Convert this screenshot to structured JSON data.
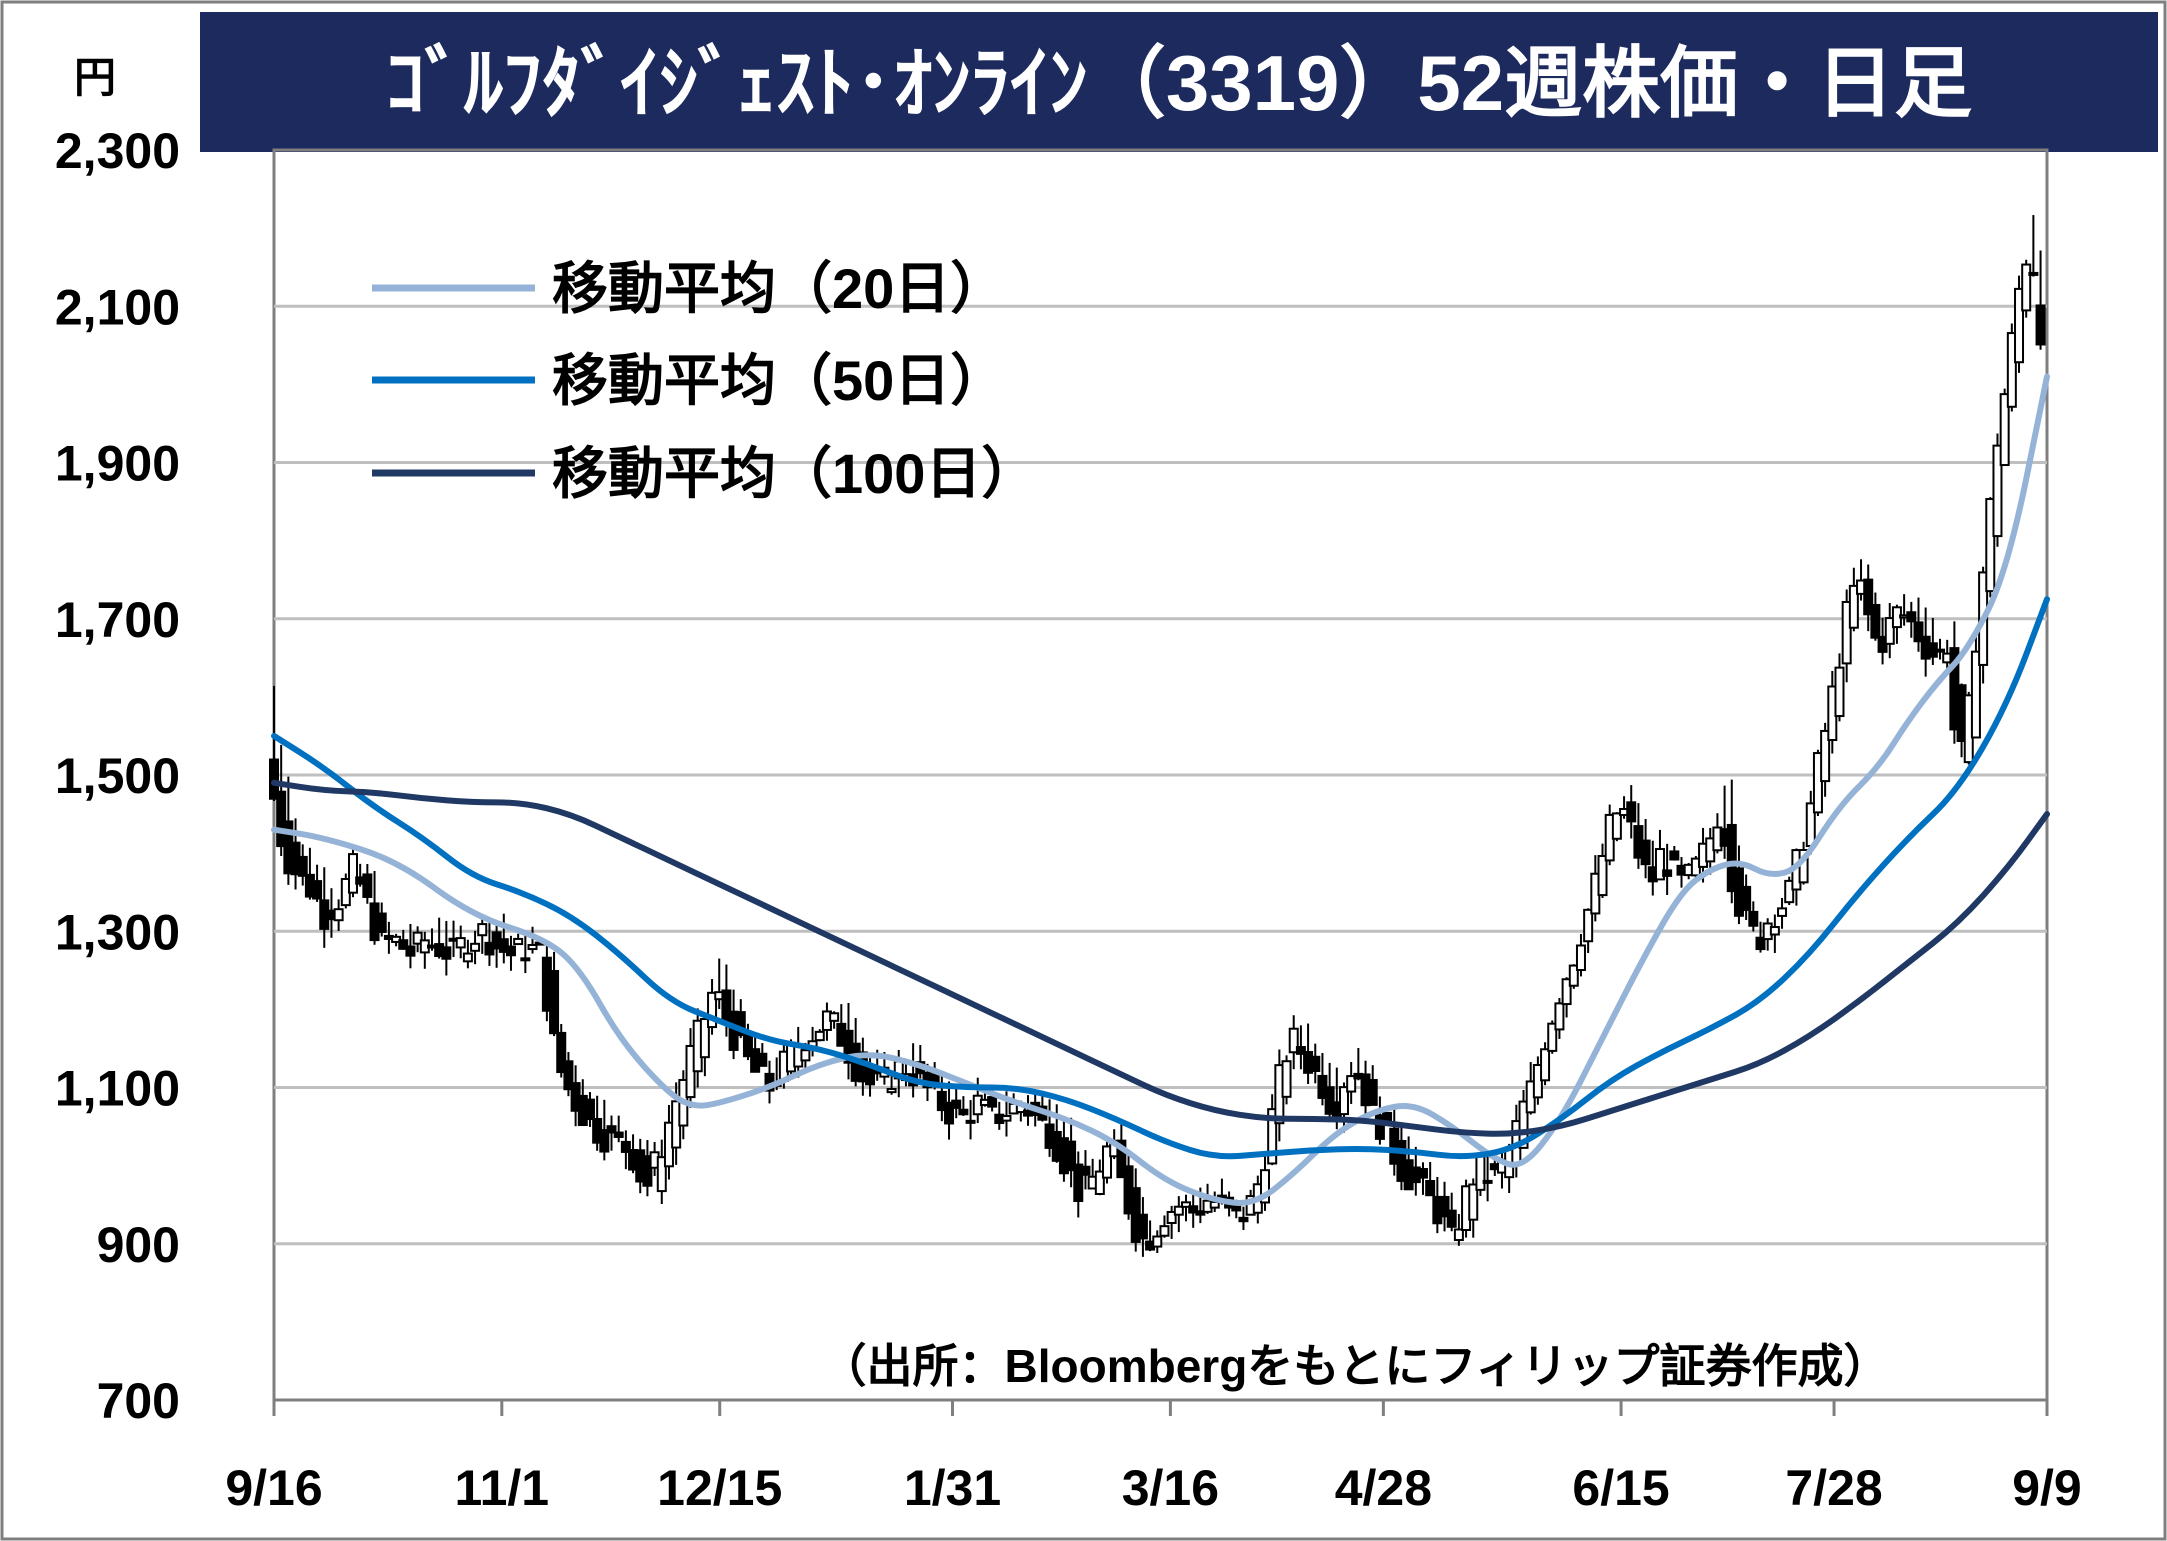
{
  "chart_data": {
    "type": "candlestick",
    "title": "ｺﾞﾙﾌﾀﾞｲｼﾞｪｽﾄ･ｵﾝﾗｲﾝ（3319）52週株価・日足",
    "unit": "円",
    "source": "（出所：Bloombergをもとにフィリップ証券作成）",
    "ylim": [
      700,
      2300
    ],
    "yticks": [
      {
        "value": 700,
        "label": "700"
      },
      {
        "value": 900,
        "label": "900"
      },
      {
        "value": 1100,
        "label": "1,100"
      },
      {
        "value": 1300,
        "label": "1,300"
      },
      {
        "value": 1500,
        "label": "1,500"
      },
      {
        "value": 1700,
        "label": "1,700"
      },
      {
        "value": 1900,
        "label": "1,900"
      },
      {
        "value": 2100,
        "label": "2,100"
      },
      {
        "value": 2300,
        "label": "2,300"
      }
    ],
    "grid": true,
    "legend_position": "top-left",
    "xticks": [
      {
        "day": 0,
        "label": "9/16"
      },
      {
        "day": 46,
        "label": "11/1"
      },
      {
        "day": 90,
        "label": "12/15"
      },
      {
        "day": 137,
        "label": "1/31"
      },
      {
        "day": 181,
        "label": "3/16"
      },
      {
        "day": 224,
        "label": "4/28"
      },
      {
        "day": 272,
        "label": "6/15"
      },
      {
        "day": 315,
        "label": "7/28"
      },
      {
        "day": 358,
        "label": "9/9"
      }
    ],
    "x_range": [
      0,
      358
    ],
    "candle_anchors": [
      [
        0,
        1470,
        1520,
        1600
      ],
      [
        2,
        1400,
        1470,
        1500
      ],
      [
        5,
        1370,
        1400,
        1420
      ],
      [
        8,
        1350,
        1370,
        1380
      ],
      [
        10,
        1320,
        1350,
        1360
      ],
      [
        13,
        1340,
        1320,
        1330
      ],
      [
        16,
        1380,
        1340,
        1350
      ],
      [
        18,
        1350,
        1380,
        1390
      ],
      [
        20,
        1310,
        1350,
        1360
      ],
      [
        22,
        1280,
        1310,
        1320
      ],
      [
        24,
        1290,
        1280,
        1290
      ],
      [
        26,
        1280,
        1290,
        1300
      ],
      [
        28,
        1270,
        1280,
        1290
      ],
      [
        30,
        1290,
        1270,
        1280
      ],
      [
        33,
        1280,
        1290,
        1300
      ],
      [
        36,
        1270,
        1280,
        1290
      ],
      [
        39,
        1290,
        1270,
        1280
      ],
      [
        42,
        1300,
        1290,
        1300
      ],
      [
        45,
        1280,
        1300,
        1310
      ],
      [
        48,
        1270,
        1280,
        1290
      ],
      [
        51,
        1280,
        1270,
        1280
      ],
      [
        54,
        1270,
        1280,
        1290
      ],
      [
        56,
        1170,
        1270,
        1280
      ],
      [
        58,
        1120,
        1170,
        1180
      ],
      [
        60,
        1090,
        1120,
        1130
      ],
      [
        63,
        1060,
        1090,
        1100
      ],
      [
        66,
        1040,
        1060,
        1070
      ],
      [
        69,
        1030,
        1040,
        1050
      ],
      [
        72,
        1020,
        1030,
        1040
      ],
      [
        75,
        970,
        1020,
        1030
      ],
      [
        78,
        1020,
        970,
        980
      ],
      [
        81,
        1080,
        1020,
        1030
      ],
      [
        84,
        1140,
        1080,
        1090
      ],
      [
        87,
        1190,
        1140,
        1150
      ],
      [
        89,
        1230,
        1190,
        1250
      ],
      [
        91,
        1190,
        1230,
        1240
      ],
      [
        94,
        1150,
        1190,
        1200
      ],
      [
        97,
        1120,
        1150,
        1160
      ],
      [
        100,
        1100,
        1120,
        1130
      ],
      [
        103,
        1130,
        1100,
        1110
      ],
      [
        106,
        1160,
        1130,
        1140
      ],
      [
        109,
        1170,
        1160,
        1170
      ],
      [
        112,
        1190,
        1170,
        1180
      ],
      [
        115,
        1160,
        1190,
        1200
      ],
      [
        118,
        1120,
        1160,
        1170
      ],
      [
        121,
        1100,
        1120,
        1130
      ],
      [
        124,
        1110,
        1100,
        1110
      ],
      [
        127,
        1130,
        1110,
        1120
      ],
      [
        130,
        1110,
        1130,
        1140
      ],
      [
        133,
        1090,
        1110,
        1120
      ],
      [
        136,
        1070,
        1090,
        1100
      ],
      [
        139,
        1060,
        1070,
        1080
      ],
      [
        142,
        1080,
        1060,
        1070
      ],
      [
        145,
        1060,
        1080,
        1090
      ],
      [
        148,
        1070,
        1060,
        1070
      ],
      [
        151,
        1080,
        1070,
        1080
      ],
      [
        154,
        1060,
        1080,
        1090
      ],
      [
        157,
        1040,
        1060,
        1070
      ],
      [
        160,
        1000,
        1040,
        1050
      ],
      [
        163,
        960,
        1000,
        1010
      ],
      [
        166,
        990,
        960,
        970
      ],
      [
        169,
        1030,
        990,
        1000
      ],
      [
        171,
        980,
        1030,
        1040
      ],
      [
        174,
        920,
        980,
        990
      ],
      [
        176,
        900,
        920,
        930
      ],
      [
        178,
        920,
        900,
        910
      ],
      [
        180,
        940,
        920,
        930
      ],
      [
        183,
        950,
        940,
        950
      ],
      [
        186,
        940,
        950,
        960
      ],
      [
        189,
        960,
        940,
        950
      ],
      [
        192,
        940,
        960,
        970
      ],
      [
        195,
        930,
        940,
        950
      ],
      [
        198,
        960,
        930,
        940
      ],
      [
        200,
        1010,
        960,
        970
      ],
      [
        202,
        1080,
        1010,
        1020
      ],
      [
        204,
        1140,
        1080,
        1090
      ],
      [
        206,
        1160,
        1140,
        1170
      ],
      [
        208,
        1140,
        1160,
        1170
      ],
      [
        210,
        1120,
        1140,
        1150
      ],
      [
        212,
        1100,
        1120,
        1130
      ],
      [
        214,
        1070,
        1100,
        1110
      ],
      [
        216,
        1110,
        1070,
        1080
      ],
      [
        218,
        1130,
        1110,
        1120
      ],
      [
        220,
        1100,
        1130,
        1140
      ],
      [
        222,
        1060,
        1100,
        1110
      ],
      [
        224,
        1050,
        1060,
        1070
      ],
      [
        227,
        1000,
        1050,
        1060
      ],
      [
        230,
        980,
        1000,
        1010
      ],
      [
        233,
        960,
        980,
        990
      ],
      [
        236,
        930,
        960,
        970
      ],
      [
        238,
        900,
        930,
        940
      ],
      [
        240,
        950,
        900,
        910
      ],
      [
        243,
        1000,
        950,
        960
      ],
      [
        246,
        980,
        1000,
        1010
      ],
      [
        249,
        1010,
        980,
        990
      ],
      [
        252,
        1070,
        1010,
        1020
      ],
      [
        254,
        1100,
        1070,
        1080
      ],
      [
        256,
        1150,
        1100,
        1110
      ],
      [
        258,
        1190,
        1150,
        1160
      ],
      [
        260,
        1230,
        1190,
        1200
      ],
      [
        262,
        1260,
        1230,
        1240
      ],
      [
        264,
        1300,
        1260,
        1270
      ],
      [
        266,
        1340,
        1300,
        1310
      ],
      [
        268,
        1390,
        1340,
        1350
      ],
      [
        270,
        1440,
        1390,
        1400
      ],
      [
        272,
        1460,
        1440,
        1450
      ],
      [
        274,
        1430,
        1460,
        1470
      ],
      [
        276,
        1390,
        1430,
        1440
      ],
      [
        278,
        1360,
        1390,
        1400
      ],
      [
        280,
        1400,
        1360,
        1370
      ],
      [
        282,
        1380,
        1400,
        1410
      ],
      [
        284,
        1360,
        1380,
        1390
      ],
      [
        286,
        1370,
        1360,
        1370
      ],
      [
        288,
        1390,
        1370,
        1380
      ],
      [
        290,
        1420,
        1390,
        1400
      ],
      [
        292,
        1460,
        1420,
        1430
      ],
      [
        294,
        1380,
        1460,
        1510
      ],
      [
        296,
        1330,
        1380,
        1390
      ],
      [
        298,
        1300,
        1330,
        1340
      ],
      [
        300,
        1290,
        1300,
        1310
      ],
      [
        302,
        1320,
        1290,
        1300
      ],
      [
        304,
        1330,
        1320,
        1330
      ],
      [
        306,
        1350,
        1330,
        1340
      ],
      [
        308,
        1400,
        1350,
        1360
      ],
      [
        310,
        1450,
        1400,
        1410
      ],
      [
        312,
        1520,
        1450,
        1460
      ],
      [
        314,
        1580,
        1520,
        1530
      ],
      [
        316,
        1650,
        1580,
        1590
      ],
      [
        318,
        1720,
        1650,
        1660
      ],
      [
        320,
        1750,
        1720,
        1780
      ],
      [
        322,
        1700,
        1750,
        1760
      ],
      [
        324,
        1660,
        1700,
        1710
      ],
      [
        326,
        1690,
        1660,
        1670
      ],
      [
        328,
        1710,
        1690,
        1700
      ],
      [
        330,
        1700,
        1710,
        1720
      ],
      [
        332,
        1680,
        1700,
        1710
      ],
      [
        334,
        1660,
        1680,
        1690
      ],
      [
        336,
        1650,
        1660,
        1670
      ],
      [
        338,
        1670,
        1650,
        1660
      ],
      [
        340,
        1500,
        1670,
        1680
      ],
      [
        342,
        1570,
        1500,
        1510
      ],
      [
        344,
        1700,
        1570,
        1580
      ],
      [
        346,
        1810,
        1700,
        1710
      ],
      [
        348,
        1930,
        1810,
        1820
      ],
      [
        350,
        2010,
        1930,
        1940
      ],
      [
        352,
        2110,
        2010,
        2020
      ],
      [
        354,
        2170,
        2110,
        2120
      ],
      [
        356,
        2140,
        2170,
        2250
      ],
      [
        358,
        1940,
        2000,
        2010
      ]
    ],
    "series": [
      {
        "name": "移動平均（20日）",
        "color": "#95b3d7",
        "points": [
          [
            0,
            1430
          ],
          [
            10,
            1420
          ],
          [
            25,
            1390
          ],
          [
            40,
            1320
          ],
          [
            55,
            1290
          ],
          [
            62,
            1250
          ],
          [
            70,
            1160
          ],
          [
            80,
            1090
          ],
          [
            85,
            1075
          ],
          [
            90,
            1080
          ],
          [
            100,
            1100
          ],
          [
            110,
            1130
          ],
          [
            120,
            1145
          ],
          [
            130,
            1130
          ],
          [
            140,
            1105
          ],
          [
            150,
            1080
          ],
          [
            160,
            1060
          ],
          [
            170,
            1030
          ],
          [
            180,
            980
          ],
          [
            190,
            955
          ],
          [
            198,
            950
          ],
          [
            206,
            990
          ],
          [
            214,
            1040
          ],
          [
            222,
            1070
          ],
          [
            230,
            1080
          ],
          [
            238,
            1050
          ],
          [
            246,
            1010
          ],
          [
            252,
            995
          ],
          [
            260,
            1060
          ],
          [
            268,
            1160
          ],
          [
            276,
            1260
          ],
          [
            284,
            1350
          ],
          [
            290,
            1380
          ],
          [
            296,
            1390
          ],
          [
            302,
            1370
          ],
          [
            308,
            1380
          ],
          [
            316,
            1460
          ],
          [
            324,
            1510
          ],
          [
            330,
            1570
          ],
          [
            336,
            1620
          ],
          [
            342,
            1660
          ],
          [
            350,
            1760
          ],
          [
            358,
            2010
          ]
        ]
      },
      {
        "name": "移動平均（50日）",
        "color": "#0070c0",
        "points": [
          [
            0,
            1550
          ],
          [
            10,
            1510
          ],
          [
            20,
            1460
          ],
          [
            30,
            1420
          ],
          [
            40,
            1370
          ],
          [
            50,
            1350
          ],
          [
            60,
            1320
          ],
          [
            70,
            1270
          ],
          [
            80,
            1210
          ],
          [
            90,
            1185
          ],
          [
            100,
            1160
          ],
          [
            110,
            1150
          ],
          [
            120,
            1130
          ],
          [
            130,
            1105
          ],
          [
            140,
            1100
          ],
          [
            150,
            1100
          ],
          [
            160,
            1085
          ],
          [
            170,
            1060
          ],
          [
            180,
            1030
          ],
          [
            190,
            1010
          ],
          [
            200,
            1015
          ],
          [
            210,
            1020
          ],
          [
            220,
            1022
          ],
          [
            230,
            1018
          ],
          [
            240,
            1010
          ],
          [
            250,
            1020
          ],
          [
            260,
            1060
          ],
          [
            270,
            1110
          ],
          [
            280,
            1145
          ],
          [
            290,
            1175
          ],
          [
            300,
            1210
          ],
          [
            310,
            1270
          ],
          [
            320,
            1350
          ],
          [
            330,
            1420
          ],
          [
            340,
            1480
          ],
          [
            350,
            1590
          ],
          [
            358,
            1725
          ]
        ]
      },
      {
        "name": "移動平均（100日）",
        "color": "#1f3864",
        "points": [
          [
            0,
            1490
          ],
          [
            10,
            1480
          ],
          [
            20,
            1478
          ],
          [
            30,
            1470
          ],
          [
            40,
            1465
          ],
          [
            50,
            1465
          ],
          [
            60,
            1450
          ],
          [
            70,
            1420
          ],
          [
            80,
            1390
          ],
          [
            90,
            1360
          ],
          [
            100,
            1330
          ],
          [
            110,
            1300
          ],
          [
            120,
            1270
          ],
          [
            130,
            1240
          ],
          [
            140,
            1210
          ],
          [
            150,
            1180
          ],
          [
            160,
            1150
          ],
          [
            170,
            1120
          ],
          [
            180,
            1090
          ],
          [
            190,
            1070
          ],
          [
            200,
            1060
          ],
          [
            210,
            1060
          ],
          [
            220,
            1058
          ],
          [
            230,
            1050
          ],
          [
            240,
            1042
          ],
          [
            250,
            1040
          ],
          [
            260,
            1050
          ],
          [
            270,
            1070
          ],
          [
            280,
            1090
          ],
          [
            290,
            1110
          ],
          [
            300,
            1130
          ],
          [
            310,
            1165
          ],
          [
            320,
            1210
          ],
          [
            330,
            1260
          ],
          [
            340,
            1310
          ],
          [
            350,
            1380
          ],
          [
            358,
            1450
          ]
        ]
      }
    ]
  },
  "colors": {
    "title_bg": "#1c2a5e",
    "title_fg": "#ffffff",
    "grid": "#bfbfbf",
    "axis": "#7f7f7f",
    "candle": "#000000"
  }
}
